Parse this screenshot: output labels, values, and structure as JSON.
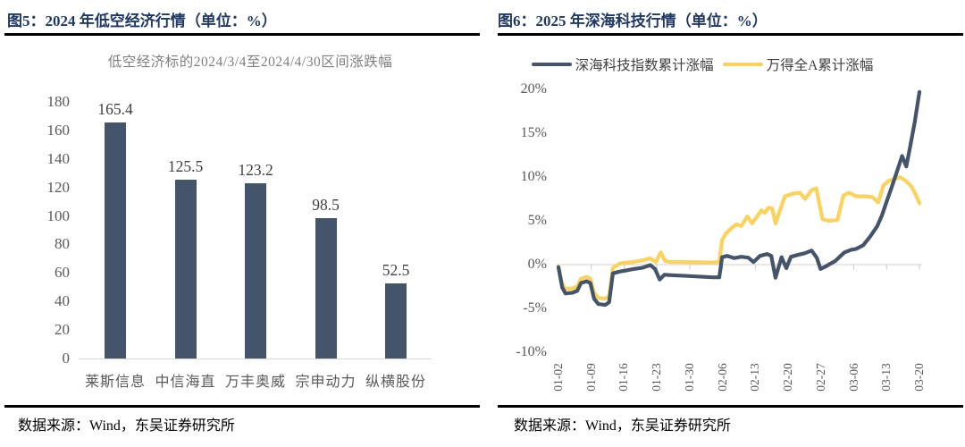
{
  "fig5": {
    "title": "图5：2024 年低空经济行情（单位：%）",
    "source": "数据来源：Wind，东吴证券研究所",
    "chart_data": {
      "type": "bar",
      "title": "低空经济标的2024/3/4至2024/4/30区间涨跌幅",
      "categories": [
        "莱斯信息",
        "中信海直",
        "万丰奥威",
        "宗申动力",
        "纵横股份"
      ],
      "values": [
        165.4,
        125.5,
        123.2,
        98.5,
        52.5
      ],
      "value_labels": [
        "165.4",
        "125.5",
        "123.2",
        "98.5",
        "52.5"
      ],
      "ylim": [
        0,
        180
      ],
      "yticks": [
        0,
        20,
        40,
        60,
        80,
        100,
        120,
        140,
        160,
        180
      ],
      "bar_color": "#44546A",
      "grid": false,
      "legend_position": "none"
    }
  },
  "fig6": {
    "title": "图6：2025 年深海科技行情（单位：%）",
    "source": "数据来源：Wind，东吴证券研究所",
    "chart_data": {
      "type": "line",
      "x_tick_labels": [
        "01-02",
        "01-09",
        "01-16",
        "01-23",
        "01-30",
        "02-06",
        "02-13",
        "02-20",
        "02-27",
        "03-06",
        "03-13",
        "03-20"
      ],
      "x_range_days": [
        0,
        77
      ],
      "ylim": [
        -10,
        20
      ],
      "ytick_labels": [
        "20%",
        "15%",
        "10%",
        "5%",
        "0%",
        "-5%",
        "-10%"
      ],
      "grid": false,
      "legend_position": "top",
      "series": [
        {
          "name": "深海科技指数累计涨幅",
          "color": "#44546A",
          "points": [
            [
              0,
              -0.3
            ],
            [
              0.8,
              -2.6
            ],
            [
              1.5,
              -3.3
            ],
            [
              3,
              -3.2
            ],
            [
              4,
              -3.0
            ],
            [
              4.8,
              -2.1
            ],
            [
              6,
              -1.9
            ],
            [
              6.8,
              -2.1
            ],
            [
              7.6,
              -3.9
            ],
            [
              8.5,
              -4.5
            ],
            [
              10,
              -4.6
            ],
            [
              10.8,
              -4.3
            ],
            [
              11.6,
              -1.0
            ],
            [
              13,
              -0.8
            ],
            [
              14,
              -0.7
            ],
            [
              16,
              -0.5
            ],
            [
              18,
              -0.35
            ],
            [
              19.6,
              -0.05
            ],
            [
              20.6,
              -0.5
            ],
            [
              21.6,
              -1.7
            ],
            [
              22.6,
              -1.15
            ],
            [
              24,
              -1.2
            ],
            [
              26,
              -1.25
            ],
            [
              33,
              -1.45
            ],
            [
              34.3,
              -1.45
            ],
            [
              34.9,
              0.85
            ],
            [
              36,
              1.0
            ],
            [
              37.5,
              0.75
            ],
            [
              39,
              0.9
            ],
            [
              40.5,
              0.8
            ],
            [
              41.6,
              0.3
            ],
            [
              43,
              1.0
            ],
            [
              44.5,
              1.2
            ],
            [
              45.4,
              1.0
            ],
            [
              46.3,
              -1.5
            ],
            [
              47.6,
              0.85
            ],
            [
              48.6,
              -0.4
            ],
            [
              49.6,
              0.9
            ],
            [
              51,
              1.1
            ],
            [
              52.5,
              1.3
            ],
            [
              54,
              1.6
            ],
            [
              55.1,
              0.8
            ],
            [
              55.9,
              -0.5
            ],
            [
              57,
              -0.2
            ],
            [
              58,
              0.1
            ],
            [
              59,
              0.4
            ],
            [
              60,
              0.9
            ],
            [
              61,
              1.4
            ],
            [
              62.5,
              1.7
            ],
            [
              63.5,
              1.8
            ],
            [
              65,
              2.2
            ],
            [
              66.5,
              3.2
            ],
            [
              68,
              4.4
            ],
            [
              69,
              5.6
            ],
            [
              70,
              7.2
            ],
            [
              71,
              8.7
            ],
            [
              72,
              10.3
            ],
            [
              73.3,
              12.4
            ],
            [
              74.2,
              11.2
            ],
            [
              75,
              13.4
            ],
            [
              76,
              16.3
            ],
            [
              77,
              19.7
            ]
          ]
        },
        {
          "name": "万得全A累计涨幅",
          "color": "#FBD25C",
          "points": [
            [
              0,
              -0.2
            ],
            [
              0.8,
              -2.2
            ],
            [
              1.5,
              -2.8
            ],
            [
              3,
              -2.7
            ],
            [
              4,
              -2.5
            ],
            [
              4.8,
              -1.6
            ],
            [
              6,
              -1.4
            ],
            [
              6.8,
              -1.6
            ],
            [
              7.6,
              -3.2
            ],
            [
              8.5,
              -3.8
            ],
            [
              10,
              -3.9
            ],
            [
              10.8,
              -3.6
            ],
            [
              11.6,
              -0.4
            ],
            [
              13,
              0.1
            ],
            [
              14,
              0.2
            ],
            [
              16,
              0.3
            ],
            [
              18,
              0.5
            ],
            [
              19.6,
              0.7
            ],
            [
              20.8,
              0.3
            ],
            [
              21.8,
              1.4
            ],
            [
              22.8,
              0.4
            ],
            [
              24,
              0.3
            ],
            [
              26,
              0.3
            ],
            [
              33,
              0.25
            ],
            [
              34.3,
              0.3
            ],
            [
              34.9,
              2.8
            ],
            [
              35.8,
              3.6
            ],
            [
              37,
              4.2
            ],
            [
              38,
              4.6
            ],
            [
              39,
              4.4
            ],
            [
              40.3,
              5.5
            ],
            [
              41.3,
              4.7
            ],
            [
              42.5,
              5.6
            ],
            [
              43.3,
              6.2
            ],
            [
              44,
              5.9
            ],
            [
              44.8,
              6.5
            ],
            [
              45.6,
              6.4
            ],
            [
              46.3,
              4.7
            ],
            [
              47.3,
              6.3
            ],
            [
              48.3,
              7.8
            ],
            [
              50,
              8.1
            ],
            [
              51.5,
              8.2
            ],
            [
              52.6,
              7.5
            ],
            [
              54,
              8.5
            ],
            [
              55,
              8.7
            ],
            [
              56.3,
              5.2
            ],
            [
              57.5,
              5.0
            ],
            [
              59.5,
              5.1
            ],
            [
              60.8,
              7.9
            ],
            [
              62,
              8.2
            ],
            [
              63.5,
              7.8
            ],
            [
              65.5,
              7.8
            ],
            [
              67,
              7.7
            ],
            [
              68.2,
              7.1
            ],
            [
              69.3,
              9.0
            ],
            [
              70.5,
              9.6
            ],
            [
              71.5,
              9.7
            ],
            [
              72.8,
              10.0
            ],
            [
              74,
              9.6
            ],
            [
              75.3,
              8.9
            ],
            [
              76.2,
              8.0
            ],
            [
              77,
              7.0
            ]
          ]
        }
      ]
    }
  },
  "colors": {
    "title_navy": "#1F3864",
    "axis_line": "#D9D9D9",
    "tick_mark": "#C9C9C9",
    "tick_text": "#595959"
  }
}
